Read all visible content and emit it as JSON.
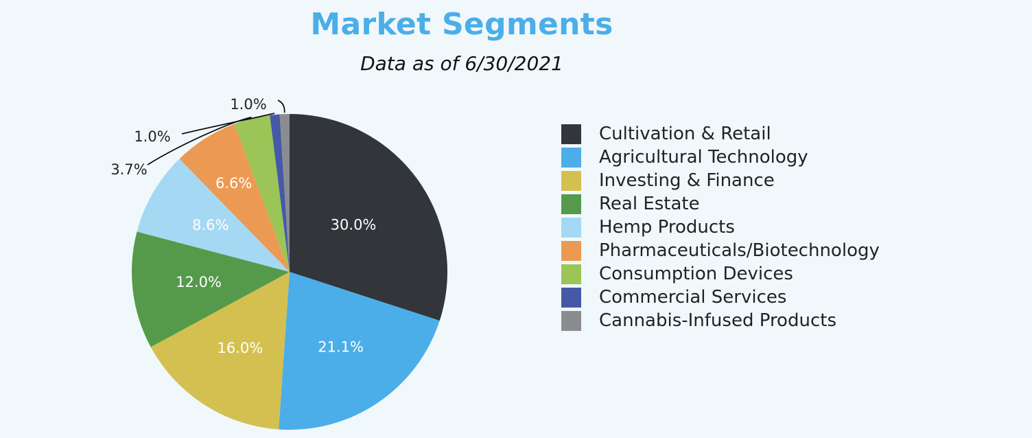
{
  "title": "Market Segments",
  "subtitle": "Data as of 6/30/2021",
  "chart_data": {
    "type": "pie",
    "title": "Market Segments",
    "subtitle": "Data as of 6/30/2021",
    "legend_position": "right",
    "series": [
      {
        "name": "Cultivation & Retail",
        "value": 30.0,
        "label": "30.0%",
        "color": "#323539"
      },
      {
        "name": "Agricultural Technology",
        "value": 21.1,
        "label": "21.1%",
        "color": "#4baee8"
      },
      {
        "name": "Investing & Finance",
        "value": 16.0,
        "label": "16.0%",
        "color": "#d4c050"
      },
      {
        "name": "Real Estate",
        "value": 12.0,
        "label": "12.0%",
        "color": "#559a4b"
      },
      {
        "name": "Hemp Products",
        "value": 8.6,
        "label": "8.6%",
        "color": "#a5d8f3"
      },
      {
        "name": "Pharmaceuticals/Biotechnology",
        "value": 6.6,
        "label": "6.6%",
        "color": "#ec9a53"
      },
      {
        "name": "Consumption Devices",
        "value": 3.7,
        "label": "3.7%",
        "color": "#9bc556"
      },
      {
        "name": "Commercial Services",
        "value": 1.0,
        "label": "1.0%",
        "color": "#4559a6"
      },
      {
        "name": "Cannabis-Infused Products",
        "value": 1.0,
        "label": "1.0%",
        "color": "#8b8c90"
      }
    ]
  }
}
